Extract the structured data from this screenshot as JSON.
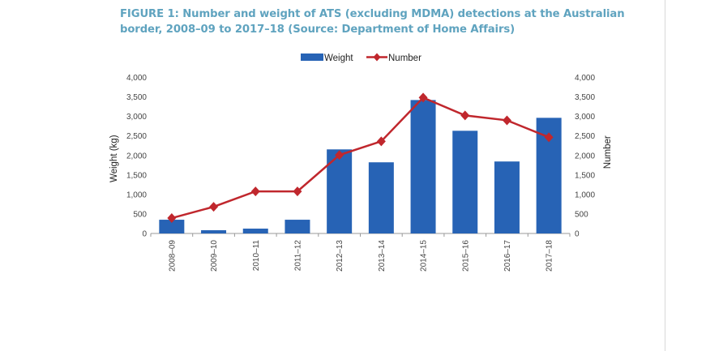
{
  "figure": {
    "title": "FIGURE 1: Number and weight of ATS (excluding MDMA) detections at the Australian border, 2008–09 to 2017–18 (Source: Department of Home Affairs)"
  },
  "chart_data": {
    "type": "bar+line",
    "title": "FIGURE 1: Number and weight of ATS (excluding MDMA) detections at the Australian border, 2008–09 to 2017–18 (Source: Department of Home Affairs)",
    "categories": [
      "2008–09",
      "2009–10",
      "2010–11",
      "2011–12",
      "2012–13",
      "2013–14",
      "2014–15",
      "2015–16",
      "2016–17",
      "2017–18"
    ],
    "series": [
      {
        "name": "Weight",
        "type": "bar",
        "axis": "left",
        "color": "#2763b5",
        "values": [
          352,
          83,
          124,
          352,
          2155,
          1824,
          3420,
          2632,
          1845,
          2964
        ]
      },
      {
        "name": "Number",
        "type": "line",
        "axis": "right",
        "color": "#c0272d",
        "marker": "diamond",
        "values": [
          394,
          684,
          1078,
          1078,
          2010,
          2362,
          3482,
          3026,
          2900,
          2466
        ]
      }
    ],
    "ylabel": "Weight (kg)",
    "y2label": "Number",
    "ylim": [
      0,
      4000
    ],
    "y2lim": [
      0,
      4000
    ],
    "yticks": [
      "0",
      "500",
      "1,000",
      "1,500",
      "2,000",
      "2,500",
      "3,000",
      "3,500",
      "4,000"
    ],
    "grid": false,
    "legend": "top-center"
  }
}
